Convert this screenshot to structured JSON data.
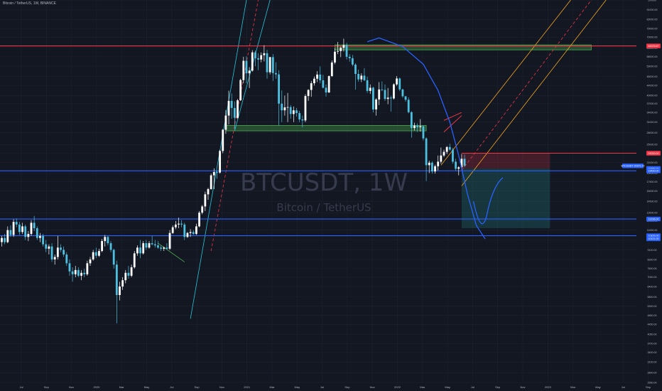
{
  "header": {
    "title": "Bitcoin / TetherUS, 1W, BINANCE"
  },
  "watermark": {
    "symbol": "BTCUSDT, 1W",
    "name": "Bitcoin / TetherUS"
  },
  "colors": {
    "background": "#131722",
    "bull_candle": "#ffffff",
    "bear_candle": "#4bc0e0",
    "support_line": "#2962ff",
    "resistance_line": "#f23645",
    "green_zone": "#4caf50",
    "projection_curve": "#2962ff",
    "channel_teal": "#26c6da",
    "channel_orange": "#f5a623",
    "channel_mid": "#f23645",
    "wedge_green": "#4caf50",
    "stop_zone": "#f23645",
    "target_zone": "#26a69a"
  },
  "chart_data": {
    "type": "candlestick",
    "title": "Bitcoin / TetherUS, 1W, BINANCE",
    "x_ticks": [
      "Jul",
      "Sep",
      "Nov",
      "2020",
      "Mar",
      "May",
      "Jul",
      "Sep",
      "Nov",
      "2021",
      "Mar",
      "May",
      "Jul",
      "Sep",
      "Nov",
      "2022",
      "Mar",
      "May",
      "Jul",
      "Sep",
      "Nov",
      "2023",
      "Mar",
      "May",
      "Jul",
      "Sep"
    ],
    "y_ticks": [
      "100000",
      "91000.00",
      "83000.00",
      "76000.00",
      "70000.00",
      "63000.00",
      "58000.00",
      "53000.00",
      "48000.00",
      "44000.00",
      "40000.00",
      "37000.00",
      "34000.00",
      "31000.00",
      "28000.00",
      "25000.00",
      "23000.00",
      "21000.00",
      "19000.00",
      "17500.00",
      "16000.00",
      "14500.00",
      "13000.00",
      "12000.00",
      "11000.00",
      "10000.00",
      "9100.00",
      "8300.00",
      "7600.00",
      "7000.00",
      "6400.00",
      "5800.00",
      "5300.00",
      "4850.00",
      "4450.00",
      "4050.00",
      "3700.00",
      "3400.00",
      "3100.00",
      "2800.00",
      "2550.00"
    ],
    "ylim": [
      2550,
      100000
    ],
    "log_scale": true,
    "grid": true,
    "price_tags": [
      {
        "label": "64375.67",
        "price": 64375.67,
        "color": "#f23645"
      },
      {
        "label": "23000.00",
        "price": 23000,
        "color": "#f23645"
      },
      {
        "label": "19866.00",
        "price": 19866,
        "color": "#2962ff"
      },
      {
        "label": "19420.00",
        "price": 19420,
        "color": "#2962ff"
      },
      {
        "label": "12236.00",
        "price": 12236,
        "color": "#2962ff"
      },
      {
        "label": "10426.00",
        "price": 10426,
        "color": "#2962ff"
      },
      {
        "label": "10121.00",
        "price": 10121,
        "color": "#2962ff"
      },
      {
        "label": "BTCUSDT 20373.72",
        "price": 20373.72,
        "color": "#2962ff"
      }
    ],
    "horizontal_levels": [
      {
        "name": "resistance",
        "price": 64375.67,
        "color": "#f23645"
      },
      {
        "name": "stop",
        "price": 23000,
        "color": "#f23645"
      },
      {
        "name": "support-1",
        "price": 19420,
        "color": "#2962ff"
      },
      {
        "name": "support-2",
        "price": 12236,
        "color": "#2962ff"
      },
      {
        "name": "support-3",
        "price": 10426,
        "color": "#2962ff"
      }
    ],
    "zones": [
      {
        "name": "green-zone-top",
        "from_week": 113,
        "to_week": 200,
        "low": 62000,
        "high": 65000,
        "color": "#4caf50"
      },
      {
        "name": "green-zone-mid",
        "from_week": 76,
        "to_week": 144,
        "low": 28500,
        "high": 30000,
        "color": "#4caf50"
      },
      {
        "name": "stop-zone",
        "from_week": 156,
        "to_week": 186,
        "low": 19866,
        "high": 23000,
        "color": "#f23645"
      },
      {
        "name": "target-zone",
        "from_week": 156,
        "to_week": 186,
        "low": 11200,
        "high": 19866,
        "color": "#26a69a"
      }
    ],
    "candles": [
      {
        "o": 9800,
        "h": 10400,
        "l": 9400,
        "c": 10200
      },
      {
        "o": 10200,
        "h": 10600,
        "l": 9600,
        "c": 9800
      },
      {
        "o": 9800,
        "h": 11400,
        "l": 9700,
        "c": 11000
      },
      {
        "o": 11000,
        "h": 11500,
        "l": 10300,
        "c": 10500
      },
      {
        "o": 10500,
        "h": 12200,
        "l": 10300,
        "c": 11900
      },
      {
        "o": 11900,
        "h": 12300,
        "l": 11300,
        "c": 11600
      },
      {
        "o": 11600,
        "h": 11900,
        "l": 10500,
        "c": 10800
      },
      {
        "o": 10800,
        "h": 11800,
        "l": 10600,
        "c": 11400
      },
      {
        "o": 11400,
        "h": 11600,
        "l": 10000,
        "c": 10300
      },
      {
        "o": 10300,
        "h": 10900,
        "l": 9900,
        "c": 10600
      },
      {
        "o": 10600,
        "h": 12100,
        "l": 10400,
        "c": 11800
      },
      {
        "o": 11800,
        "h": 12600,
        "l": 10900,
        "c": 11200
      },
      {
        "o": 11200,
        "h": 11400,
        "l": 10000,
        "c": 10200
      },
      {
        "o": 10200,
        "h": 10700,
        "l": 9800,
        "c": 10400
      },
      {
        "o": 10400,
        "h": 10600,
        "l": 9400,
        "c": 9600
      },
      {
        "o": 9600,
        "h": 10000,
        "l": 8900,
        "c": 9200
      },
      {
        "o": 9200,
        "h": 9600,
        "l": 8700,
        "c": 9400
      },
      {
        "o": 9400,
        "h": 9700,
        "l": 8100,
        "c": 8300
      },
      {
        "o": 8300,
        "h": 8700,
        "l": 7900,
        "c": 8500
      },
      {
        "o": 8500,
        "h": 10400,
        "l": 8300,
        "c": 9300
      },
      {
        "o": 9300,
        "h": 9600,
        "l": 8900,
        "c": 9100
      },
      {
        "o": 9100,
        "h": 9400,
        "l": 8500,
        "c": 8700
      },
      {
        "o": 8700,
        "h": 8900,
        "l": 7800,
        "c": 8000
      },
      {
        "o": 8000,
        "h": 8300,
        "l": 7100,
        "c": 7400
      },
      {
        "o": 7400,
        "h": 7700,
        "l": 6700,
        "c": 7200
      },
      {
        "o": 7200,
        "h": 7800,
        "l": 7000,
        "c": 7500
      },
      {
        "o": 7500,
        "h": 7700,
        "l": 7000,
        "c": 7100
      },
      {
        "o": 7100,
        "h": 7500,
        "l": 6800,
        "c": 7300
      },
      {
        "o": 7300,
        "h": 7600,
        "l": 7000,
        "c": 7200
      },
      {
        "o": 7200,
        "h": 8200,
        "l": 7100,
        "c": 8000
      },
      {
        "o": 8000,
        "h": 8500,
        "l": 7800,
        "c": 8300
      },
      {
        "o": 8300,
        "h": 9100,
        "l": 8200,
        "c": 8900
      },
      {
        "o": 8900,
        "h": 9300,
        "l": 8400,
        "c": 8600
      },
      {
        "o": 8600,
        "h": 9200,
        "l": 8500,
        "c": 9000
      },
      {
        "o": 9000,
        "h": 10100,
        "l": 8900,
        "c": 9900
      },
      {
        "o": 9900,
        "h": 10500,
        "l": 9400,
        "c": 10300
      },
      {
        "o": 10300,
        "h": 10400,
        "l": 9500,
        "c": 9700
      },
      {
        "o": 9700,
        "h": 9900,
        "l": 8900,
        "c": 9100
      },
      {
        "o": 9100,
        "h": 9200,
        "l": 7600,
        "c": 7900
      },
      {
        "o": 7900,
        "h": 8200,
        "l": 4500,
        "c": 5900
      },
      {
        "o": 5900,
        "h": 6700,
        "l": 5600,
        "c": 6400
      },
      {
        "o": 6400,
        "h": 7000,
        "l": 6200,
        "c": 6800
      },
      {
        "o": 6800,
        "h": 7500,
        "l": 6600,
        "c": 7300
      },
      {
        "o": 7300,
        "h": 7800,
        "l": 6900,
        "c": 7100
      },
      {
        "o": 7100,
        "h": 7900,
        "l": 7000,
        "c": 7700
      },
      {
        "o": 7700,
        "h": 9000,
        "l": 7600,
        "c": 8800
      },
      {
        "o": 8800,
        "h": 9500,
        "l": 8600,
        "c": 9300
      },
      {
        "o": 9300,
        "h": 10000,
        "l": 8400,
        "c": 8800
      },
      {
        "o": 8800,
        "h": 9900,
        "l": 8700,
        "c": 9700
      },
      {
        "o": 9700,
        "h": 10000,
        "l": 9100,
        "c": 9300
      },
      {
        "o": 9300,
        "h": 9900,
        "l": 9200,
        "c": 9700
      },
      {
        "o": 9700,
        "h": 10400,
        "l": 9500,
        "c": 9600
      },
      {
        "o": 9600,
        "h": 10000,
        "l": 9300,
        "c": 9500
      },
      {
        "o": 9500,
        "h": 9900,
        "l": 9200,
        "c": 9300
      },
      {
        "o": 9300,
        "h": 9500,
        "l": 9000,
        "c": 9200
      },
      {
        "o": 9200,
        "h": 9400,
        "l": 9000,
        "c": 9300
      },
      {
        "o": 9300,
        "h": 9700,
        "l": 9100,
        "c": 9200
      },
      {
        "o": 9200,
        "h": 11000,
        "l": 9100,
        "c": 10700
      },
      {
        "o": 10700,
        "h": 11500,
        "l": 10600,
        "c": 11300
      },
      {
        "o": 11300,
        "h": 12000,
        "l": 11100,
        "c": 11600
      },
      {
        "o": 11600,
        "h": 12400,
        "l": 11200,
        "c": 11700
      },
      {
        "o": 11700,
        "h": 12100,
        "l": 11300,
        "c": 11600
      },
      {
        "o": 11600,
        "h": 11800,
        "l": 10000,
        "c": 10300
      },
      {
        "o": 10300,
        "h": 10800,
        "l": 10200,
        "c": 10700
      },
      {
        "o": 10700,
        "h": 11100,
        "l": 10300,
        "c": 10800
      },
      {
        "o": 10800,
        "h": 11000,
        "l": 10500,
        "c": 10600
      },
      {
        "o": 10600,
        "h": 11700,
        "l": 10500,
        "c": 11400
      },
      {
        "o": 11400,
        "h": 13200,
        "l": 11300,
        "c": 13000
      },
      {
        "o": 13000,
        "h": 14000,
        "l": 12800,
        "c": 13800
      },
      {
        "o": 13800,
        "h": 15900,
        "l": 13200,
        "c": 15500
      },
      {
        "o": 15500,
        "h": 16500,
        "l": 14700,
        "c": 16300
      },
      {
        "o": 16300,
        "h": 18900,
        "l": 16200,
        "c": 18600
      },
      {
        "o": 18600,
        "h": 19900,
        "l": 16300,
        "c": 19200
      },
      {
        "o": 19200,
        "h": 19500,
        "l": 18000,
        "c": 19100
      },
      {
        "o": 19100,
        "h": 23800,
        "l": 18900,
        "c": 23500
      },
      {
        "o": 23500,
        "h": 29000,
        "l": 23000,
        "c": 28800
      },
      {
        "o": 28800,
        "h": 34800,
        "l": 27700,
        "c": 33000
      },
      {
        "o": 33000,
        "h": 41900,
        "l": 30300,
        "c": 38000
      },
      {
        "o": 38000,
        "h": 40800,
        "l": 32000,
        "c": 35500
      },
      {
        "o": 35500,
        "h": 37800,
        "l": 29000,
        "c": 32300
      },
      {
        "o": 32300,
        "h": 38700,
        "l": 32000,
        "c": 38200
      },
      {
        "o": 38200,
        "h": 47000,
        "l": 38000,
        "c": 46400
      },
      {
        "o": 46400,
        "h": 58000,
        "l": 45000,
        "c": 55800
      },
      {
        "o": 55800,
        "h": 58300,
        "l": 45000,
        "c": 49500
      },
      {
        "o": 49500,
        "h": 52500,
        "l": 43000,
        "c": 50800
      },
      {
        "o": 50800,
        "h": 61800,
        "l": 50300,
        "c": 60500
      },
      {
        "o": 60500,
        "h": 61500,
        "l": 53000,
        "c": 57200
      },
      {
        "o": 57200,
        "h": 60000,
        "l": 51000,
        "c": 56500
      },
      {
        "o": 56500,
        "h": 60500,
        "l": 55000,
        "c": 58900
      },
      {
        "o": 58900,
        "h": 64800,
        "l": 55500,
        "c": 60000
      },
      {
        "o": 60000,
        "h": 62000,
        "l": 47000,
        "c": 50000
      },
      {
        "o": 50000,
        "h": 58000,
        "l": 49000,
        "c": 57800
      },
      {
        "o": 57800,
        "h": 59500,
        "l": 46000,
        "c": 49600
      },
      {
        "o": 49600,
        "h": 55000,
        "l": 47000,
        "c": 49000
      },
      {
        "o": 49000,
        "h": 51000,
        "l": 30000,
        "c": 37000
      },
      {
        "o": 37000,
        "h": 42000,
        "l": 31000,
        "c": 34700
      },
      {
        "o": 34700,
        "h": 40000,
        "l": 33000,
        "c": 35700
      },
      {
        "o": 35700,
        "h": 41000,
        "l": 31000,
        "c": 35800
      },
      {
        "o": 35800,
        "h": 36500,
        "l": 32000,
        "c": 33500
      },
      {
        "o": 33500,
        "h": 36000,
        "l": 31000,
        "c": 34700
      },
      {
        "o": 34700,
        "h": 35500,
        "l": 32700,
        "c": 33800
      },
      {
        "o": 33800,
        "h": 34500,
        "l": 31000,
        "c": 31800
      },
      {
        "o": 31800,
        "h": 33000,
        "l": 29500,
        "c": 31500
      },
      {
        "o": 31500,
        "h": 40500,
        "l": 31000,
        "c": 39800
      },
      {
        "o": 39800,
        "h": 42500,
        "l": 38000,
        "c": 42200
      },
      {
        "o": 42200,
        "h": 46000,
        "l": 39500,
        "c": 45000
      },
      {
        "o": 45000,
        "h": 48000,
        "l": 44000,
        "c": 47000
      },
      {
        "o": 47000,
        "h": 50500,
        "l": 45500,
        "c": 48900
      },
      {
        "o": 48900,
        "h": 52900,
        "l": 45000,
        "c": 46300
      },
      {
        "o": 46300,
        "h": 48800,
        "l": 42800,
        "c": 43100
      },
      {
        "o": 43100,
        "h": 44500,
        "l": 39600,
        "c": 41200
      },
      {
        "o": 41200,
        "h": 48500,
        "l": 41000,
        "c": 48200
      },
      {
        "o": 48200,
        "h": 56000,
        "l": 47800,
        "c": 54900
      },
      {
        "o": 54900,
        "h": 62900,
        "l": 54000,
        "c": 60900
      },
      {
        "o": 60900,
        "h": 66900,
        "l": 59500,
        "c": 61300
      },
      {
        "o": 61300,
        "h": 64000,
        "l": 57800,
        "c": 63200
      },
      {
        "o": 63200,
        "h": 69000,
        "l": 61000,
        "c": 64900
      },
      {
        "o": 64900,
        "h": 66300,
        "l": 56500,
        "c": 58000
      },
      {
        "o": 58000,
        "h": 59500,
        "l": 55300,
        "c": 57200
      },
      {
        "o": 57200,
        "h": 59000,
        "l": 53000,
        "c": 53800
      },
      {
        "o": 53800,
        "h": 54500,
        "l": 42300,
        "c": 49200
      },
      {
        "o": 49200,
        "h": 51300,
        "l": 45700,
        "c": 46700
      },
      {
        "o": 46700,
        "h": 49500,
        "l": 45500,
        "c": 48400
      },
      {
        "o": 48400,
        "h": 52000,
        "l": 45900,
        "c": 46300
      },
      {
        "o": 46300,
        "h": 47900,
        "l": 41000,
        "c": 41800
      },
      {
        "o": 41800,
        "h": 44500,
        "l": 40600,
        "c": 43100
      },
      {
        "o": 43100,
        "h": 43500,
        "l": 34000,
        "c": 35000
      },
      {
        "o": 35000,
        "h": 39000,
        "l": 33000,
        "c": 38500
      },
      {
        "o": 38500,
        "h": 45500,
        "l": 36500,
        "c": 42400
      },
      {
        "o": 42400,
        "h": 45800,
        "l": 41700,
        "c": 42200
      },
      {
        "o": 42200,
        "h": 44500,
        "l": 38000,
        "c": 38700
      },
      {
        "o": 38700,
        "h": 43000,
        "l": 36800,
        "c": 39200
      },
      {
        "o": 39200,
        "h": 39900,
        "l": 34300,
        "c": 38900
      },
      {
        "o": 38900,
        "h": 45000,
        "l": 38500,
        "c": 44500
      },
      {
        "o": 44500,
        "h": 48200,
        "l": 43900,
        "c": 47100
      },
      {
        "o": 47100,
        "h": 47500,
        "l": 41700,
        "c": 42400
      },
      {
        "o": 42400,
        "h": 42700,
        "l": 39200,
        "c": 39700
      },
      {
        "o": 39700,
        "h": 39800,
        "l": 37700,
        "c": 38400
      },
      {
        "o": 38400,
        "h": 39300,
        "l": 33700,
        "c": 34100
      },
      {
        "o": 34100,
        "h": 34400,
        "l": 26700,
        "c": 29300
      },
      {
        "o": 29300,
        "h": 30800,
        "l": 28600,
        "c": 30000
      },
      {
        "o": 30000,
        "h": 30600,
        "l": 28200,
        "c": 29500
      },
      {
        "o": 29500,
        "h": 31900,
        "l": 28300,
        "c": 29800
      },
      {
        "o": 29800,
        "h": 30000,
        "l": 26000,
        "c": 26500
      },
      {
        "o": 26500,
        "h": 26800,
        "l": 17600,
        "c": 20500
      },
      {
        "o": 20500,
        "h": 21400,
        "l": 19000,
        "c": 21000
      },
      {
        "o": 21000,
        "h": 21300,
        "l": 18900,
        "c": 19300
      },
      {
        "o": 19300,
        "h": 20600,
        "l": 18900,
        "c": 20300
      },
      {
        "o": 20300,
        "h": 22500,
        "l": 19500,
        "c": 21200
      },
      {
        "o": 21200,
        "h": 24300,
        "l": 20800,
        "c": 22500
      },
      {
        "o": 22500,
        "h": 23800,
        "l": 22200,
        "c": 23300
      },
      {
        "o": 23300,
        "h": 24600,
        "l": 22800,
        "c": 24400
      },
      {
        "o": 24400,
        "h": 25200,
        "l": 23500,
        "c": 23800
      },
      {
        "o": 23800,
        "h": 24200,
        "l": 20800,
        "c": 21200
      },
      {
        "o": 21200,
        "h": 21800,
        "l": 19500,
        "c": 19800
      },
      {
        "o": 19800,
        "h": 20300,
        "l": 18600,
        "c": 20100
      },
      {
        "o": 20100,
        "h": 22800,
        "l": 19600,
        "c": 21800
      },
      {
        "o": 21800,
        "h": 22700,
        "l": 20100,
        "c": 20400
      }
    ]
  }
}
